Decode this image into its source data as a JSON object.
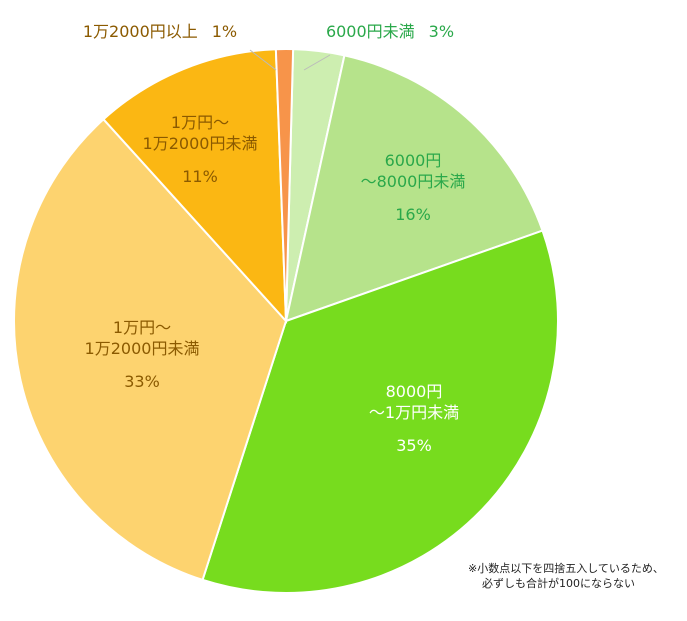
{
  "chart_data": {
    "type": "pie",
    "slices": [
      {
        "label": "6000円未満",
        "lines": [
          "6000円未満"
        ],
        "pct_text": "3%",
        "value": 3,
        "color": "#cdeeb0",
        "text_color": "#2aa84a"
      },
      {
        "label": "6000円～8000円未満",
        "lines": [
          "6000円",
          "～8000円未満"
        ],
        "pct_text": "16%",
        "value": 16,
        "color": "#b6e38b",
        "text_color": "#2aa84a"
      },
      {
        "label": "8000円～1万円未満",
        "lines": [
          "8000円",
          "～1万円未満"
        ],
        "pct_text": "35%",
        "value": 35,
        "color": "#77dc1e",
        "text_color": "#ffffff"
      },
      {
        "label": "1万円～1万2000円未満",
        "lines": [
          "1万円～",
          "1万2000円未満"
        ],
        "pct_text": "33%",
        "value": 33,
        "color": "#fdd36f",
        "text_color": "#8b5a00"
      },
      {
        "label": "1万円～1万2000円未満",
        "lines": [
          "1万円～",
          "1万2000円未満"
        ],
        "pct_text": "11%",
        "value": 11,
        "color": "#fbb713",
        "text_color": "#8b5a00"
      },
      {
        "label": "1万2000円以上",
        "lines": [
          "1万2000円以上"
        ],
        "pct_text": "1%",
        "value": 1,
        "color": "#f7944a",
        "text_color": "#8b5a00"
      }
    ]
  },
  "note": {
    "line1": "※小数点以下を四捨五入しているため、",
    "line2": "必ずしも合計が100にならない"
  }
}
